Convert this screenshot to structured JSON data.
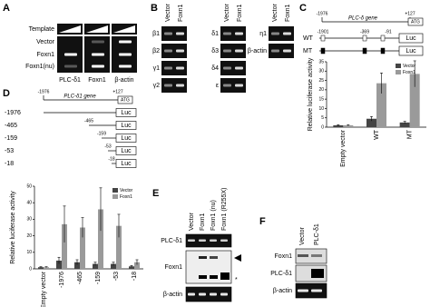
{
  "panels": {
    "a": {
      "label": "A",
      "rows": [
        "Template",
        "Vector",
        "Foxn1",
        "Foxn1(nu)"
      ],
      "columns": [
        "PLC-δ1",
        "Foxn1",
        "β-actin"
      ]
    },
    "b": {
      "label": "B",
      "lanes": [
        "Vector",
        "Foxn1"
      ],
      "groups": [
        [
          "β1",
          "β2",
          "γ1",
          "γ2"
        ],
        [
          "δ1",
          "δ3",
          "δ4",
          "ε"
        ],
        [
          "η1",
          "β-actin"
        ]
      ]
    },
    "c": {
      "label": "C",
      "start": "-1976",
      "end": "+127",
      "gene": "PLC-δ gene",
      "atg": "ATG",
      "constructs": [
        "WT",
        "MT"
      ],
      "sites": [
        "-1901",
        "-369",
        "-91"
      ],
      "luc": "Luc"
    },
    "d": {
      "label": "D",
      "start": "-1976",
      "end": "+127",
      "gene": "PLC-δ1 gene",
      "atg": "ATG",
      "constructs": [
        "-1976",
        "-465",
        "-159",
        "-53",
        "-18"
      ],
      "luc": "Luc"
    },
    "e": {
      "label": "E",
      "lanes": [
        "Vector",
        "Foxn1",
        "Foxn1 (nu)",
        "Foxn1 (R255X)"
      ],
      "rows": [
        "PLC-δ1",
        "Foxn1",
        "β-actin"
      ],
      "asterisk": "*"
    },
    "f": {
      "label": "F",
      "lanes": [
        "Vector",
        "PLC-δ1"
      ],
      "rows": [
        "Foxn1",
        "PLC-δ1",
        "β-actin"
      ]
    }
  },
  "chart_data": [
    {
      "type": "bar",
      "y_label": "Relative luciferase activity",
      "categories": [
        "Empty vector",
        "WT",
        "MT"
      ],
      "series": [
        {
          "name": "Vector",
          "color": "#444444",
          "values": [
            1,
            4.5,
            2.5
          ],
          "errors": [
            0.3,
            1.2,
            0.6
          ]
        },
        {
          "name": "Foxn1",
          "color": "#9a9a9a",
          "values": [
            1,
            23.5,
            28.5
          ],
          "errors": [
            0.3,
            5.5,
            7
          ]
        }
      ],
      "ylim": [
        0,
        35
      ],
      "yticks": [
        0,
        5,
        10,
        15,
        20,
        25,
        30,
        35
      ],
      "legend": "top-right"
    },
    {
      "type": "bar",
      "y_label": "Relative luciferase activity",
      "categories": [
        "Empty vector",
        "-1976",
        "-465",
        "-159",
        "-53",
        "-18"
      ],
      "series": [
        {
          "name": "Vector",
          "color": "#444444",
          "values": [
            1,
            5,
            4,
            3,
            3,
            1.5
          ],
          "errors": [
            0.3,
            2,
            1.5,
            1,
            1,
            0.5
          ]
        },
        {
          "name": "Foxn1",
          "color": "#9a9a9a",
          "values": [
            1,
            27,
            25,
            36,
            26,
            4
          ],
          "errors": [
            0.3,
            11,
            6,
            13,
            7,
            1.5
          ]
        }
      ],
      "ylim": [
        0,
        50
      ],
      "yticks": [
        0,
        10,
        20,
        30,
        40,
        50
      ],
      "legend": "top-right"
    }
  ]
}
